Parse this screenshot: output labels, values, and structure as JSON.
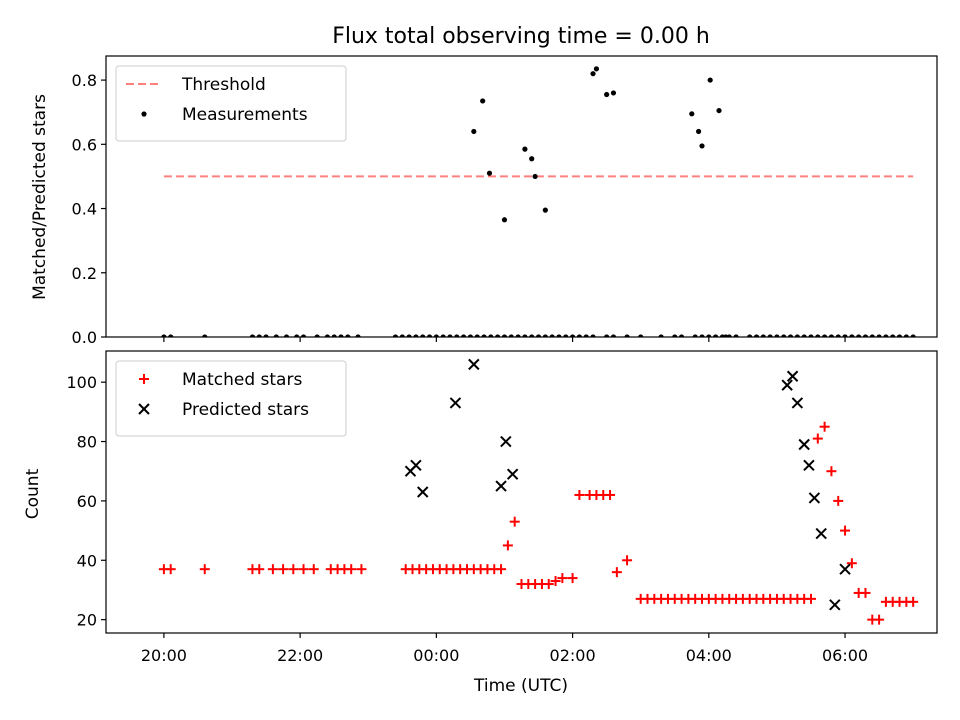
{
  "chart_data": [
    {
      "type": "scatter",
      "title": "Flux total observing time = 0.00 h",
      "xlabel": "",
      "ylabel": "Matched/Predicted stars",
      "xlim": [
        -4.85,
        7.35
      ],
      "ylim": [
        0.0,
        0.875
      ],
      "yticks": [
        0.0,
        0.2,
        0.4,
        0.6,
        0.8
      ],
      "ytick_labels": [
        "0.0",
        "0.2",
        "0.4",
        "0.6",
        "0.8"
      ],
      "legend_position": "top-left",
      "series": [
        {
          "name": "Threshold",
          "kind": "dashed-line",
          "color": "#ff7f7f",
          "x": [
            -4.0,
            7.0
          ],
          "y": [
            0.5,
            0.5
          ]
        },
        {
          "name": "Measurements",
          "kind": "dot",
          "color": "#000000",
          "x": [
            -4.0,
            -3.9,
            -3.4,
            -2.7,
            -2.6,
            -2.5,
            -2.35,
            -2.2,
            -2.05,
            -1.95,
            -1.75,
            -1.6,
            -1.5,
            -1.4,
            -1.3,
            -1.15,
            -0.6,
            -0.5,
            -0.4,
            -0.3,
            -0.2,
            -0.1,
            0.0,
            0.1,
            0.2,
            0.3,
            0.4,
            0.5,
            0.6,
            0.7,
            0.8,
            0.9,
            1.0,
            1.1,
            1.2,
            1.3,
            1.4,
            1.5,
            1.6,
            1.7,
            1.8,
            1.9,
            2.0,
            2.1,
            2.2,
            2.3,
            2.5,
            2.6,
            2.8,
            3.0,
            3.3,
            3.5,
            3.6,
            3.8,
            3.9,
            4.0,
            4.1,
            4.2,
            4.3,
            4.4,
            4.6,
            4.7,
            4.8,
            4.9,
            5.0,
            5.1,
            5.2,
            5.3,
            5.4,
            5.5,
            5.6,
            5.7,
            5.8,
            5.9,
            6.0,
            6.1,
            6.2,
            6.3,
            6.4,
            6.5,
            6.6,
            6.7,
            6.8,
            6.9,
            7.0,
            0.55,
            0.68,
            0.78,
            1.0,
            1.3,
            1.4,
            1.45,
            1.6,
            2.3,
            2.35,
            2.5,
            2.6,
            3.75,
            3.85,
            3.9,
            4.02,
            4.15,
            4.25,
            6.0,
            6.1
          ],
          "y": [
            0.0,
            0.0,
            0.0,
            0.0,
            0.0,
            0.0,
            0.0,
            0.0,
            0.0,
            0.0,
            0.0,
            0.0,
            0.0,
            0.0,
            0.0,
            0.0,
            0.0,
            0.0,
            0.0,
            0.0,
            0.0,
            0.0,
            0.0,
            0.0,
            0.0,
            0.0,
            0.0,
            0.0,
            0.0,
            0.0,
            0.0,
            0.0,
            0.0,
            0.0,
            0.0,
            0.0,
            0.0,
            0.0,
            0.0,
            0.0,
            0.0,
            0.0,
            0.0,
            0.0,
            0.0,
            0.0,
            0.0,
            0.0,
            0.0,
            0.0,
            0.0,
            0.0,
            0.0,
            0.0,
            0.0,
            0.0,
            0.0,
            0.0,
            0.0,
            0.0,
            0.0,
            0.0,
            0.0,
            0.0,
            0.0,
            0.0,
            0.0,
            0.0,
            0.0,
            0.0,
            0.0,
            0.0,
            0.0,
            0.0,
            0.0,
            0.0,
            0.0,
            0.0,
            0.0,
            0.0,
            0.0,
            0.0,
            0.0,
            0.0,
            0.0,
            0.64,
            0.735,
            0.51,
            0.365,
            0.585,
            0.555,
            0.5,
            0.395,
            0.82,
            0.835,
            0.755,
            0.76,
            0.695,
            0.64,
            0.595,
            0.8,
            0.705,
            0.0,
            0.0,
            0.0
          ]
        }
      ]
    },
    {
      "type": "scatter",
      "title": "",
      "xlabel": "Time (UTC)",
      "ylabel": "Count",
      "xlim": [
        -4.85,
        7.35
      ],
      "ylim": [
        15.5,
        110.5
      ],
      "yticks": [
        20,
        40,
        60,
        80,
        100
      ],
      "ytick_labels": [
        "20",
        "40",
        "60",
        "80",
        "100"
      ],
      "xticks": [
        -4,
        -2,
        0,
        2,
        4,
        6
      ],
      "xtick_labels": [
        "20:00",
        "22:00",
        "00:00",
        "02:00",
        "04:00",
        "06:00"
      ],
      "legend_position": "top-left",
      "series": [
        {
          "name": "Matched stars",
          "kind": "plus",
          "color": "#ff0000",
          "x": [
            -4.0,
            -3.9,
            -3.4,
            -2.7,
            -2.6,
            -2.4,
            -2.25,
            -2.1,
            -1.95,
            -1.8,
            -1.55,
            -1.45,
            -1.35,
            -1.25,
            -1.1,
            -0.45,
            -0.35,
            -0.25,
            -0.15,
            -0.05,
            0.05,
            0.15,
            0.25,
            0.35,
            0.45,
            0.55,
            0.65,
            0.75,
            0.85,
            0.95,
            1.05,
            1.15,
            1.25,
            1.35,
            1.45,
            1.55,
            1.65,
            1.75,
            1.85,
            2.0,
            2.1,
            2.25,
            2.35,
            2.45,
            2.55,
            2.65,
            2.8,
            3.0,
            3.1,
            3.2,
            3.3,
            3.4,
            3.5,
            3.6,
            3.7,
            3.8,
            3.9,
            4.0,
            4.1,
            4.2,
            4.3,
            4.4,
            4.5,
            4.6,
            4.7,
            4.8,
            4.9,
            5.0,
            5.1,
            5.2,
            5.3,
            5.4,
            5.5,
            5.6,
            5.7,
            5.8,
            5.9,
            6.0,
            6.1,
            6.2,
            6.3,
            6.4,
            6.5,
            6.6,
            6.7,
            6.8,
            6.9,
            7.0
          ],
          "y": [
            37,
            37,
            37,
            37,
            37,
            37,
            37,
            37,
            37,
            37,
            37,
            37,
            37,
            37,
            37,
            37,
            37,
            37,
            37,
            37,
            37,
            37,
            37,
            37,
            37,
            37,
            37,
            37,
            37,
            37,
            45,
            53,
            32,
            32,
            32,
            32,
            32,
            33,
            34,
            34,
            62,
            62,
            62,
            62,
            62,
            36,
            40,
            27,
            27,
            27,
            27,
            27,
            27,
            27,
            27,
            27,
            27,
            27,
            27,
            27,
            27,
            27,
            27,
            27,
            27,
            27,
            27,
            27,
            27,
            27,
            27,
            27,
            27,
            81,
            85,
            70,
            60,
            50,
            39,
            29,
            29,
            20,
            20,
            26,
            26,
            26,
            26,
            26
          ]
        },
        {
          "name": "Predicted stars",
          "kind": "x",
          "color": "#000000",
          "x": [
            -0.38,
            -0.3,
            -0.2,
            0.28,
            0.55,
            0.95,
            1.02,
            1.12,
            5.15,
            5.23,
            5.3,
            5.4,
            5.47,
            5.55,
            5.65,
            5.85,
            6.0
          ],
          "y": [
            70,
            72,
            63,
            93,
            106,
            65,
            80,
            69,
            99,
            102,
            93,
            79,
            72,
            61,
            49,
            25,
            37
          ]
        }
      ]
    }
  ]
}
